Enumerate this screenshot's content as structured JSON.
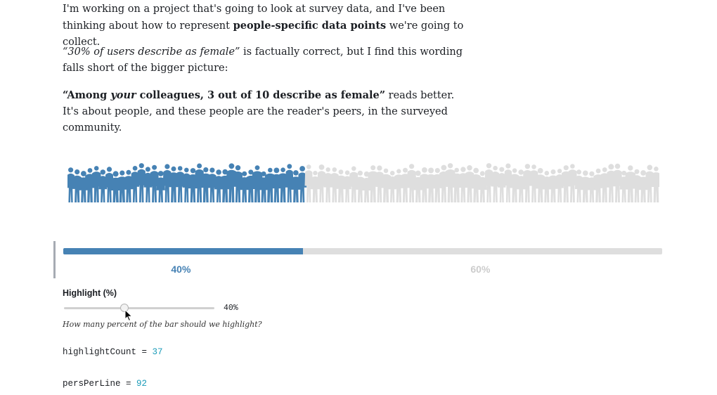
{
  "article": {
    "p1": {
      "a": "I'm working on a project that's going to look at survey data, and I've been thinking about how to represent ",
      "b": "people-specific data points",
      "c": " we're going to collect."
    },
    "p2": {
      "a": "“30% of users describe as female”",
      "b": " is factually correct, but I find this wording falls short of the bigger picture:"
    },
    "p3": {
      "a": "“Among ",
      "b": "your",
      "c": " colleagues, 3 out of 10 describe as female”",
      "d": " reads better. It's about people, and these people are the reader's peers, in the surveyed community."
    }
  },
  "visualization": {
    "highlight_color": "#4682b4",
    "rest_color": "#dedede",
    "highlight_fraction": 0.4,
    "highlight_label": "40%",
    "rest_label": "60%",
    "highlight_label_color": "#4682b4",
    "rest_label_color": "#cccccc"
  },
  "controls": {
    "highlight_label": "Highlight (%)",
    "slider_value": 40,
    "slider_min": 0,
    "slider_max": 100,
    "slider_display": "40%",
    "help_text": "How many percent of the bar should we highlight?"
  },
  "code": {
    "highlight_name": "highlightCount",
    "highlight_eq": " = ",
    "highlight_value": "37",
    "perline_name": "persPerLine",
    "perline_eq": " = ",
    "perline_value": "92"
  }
}
